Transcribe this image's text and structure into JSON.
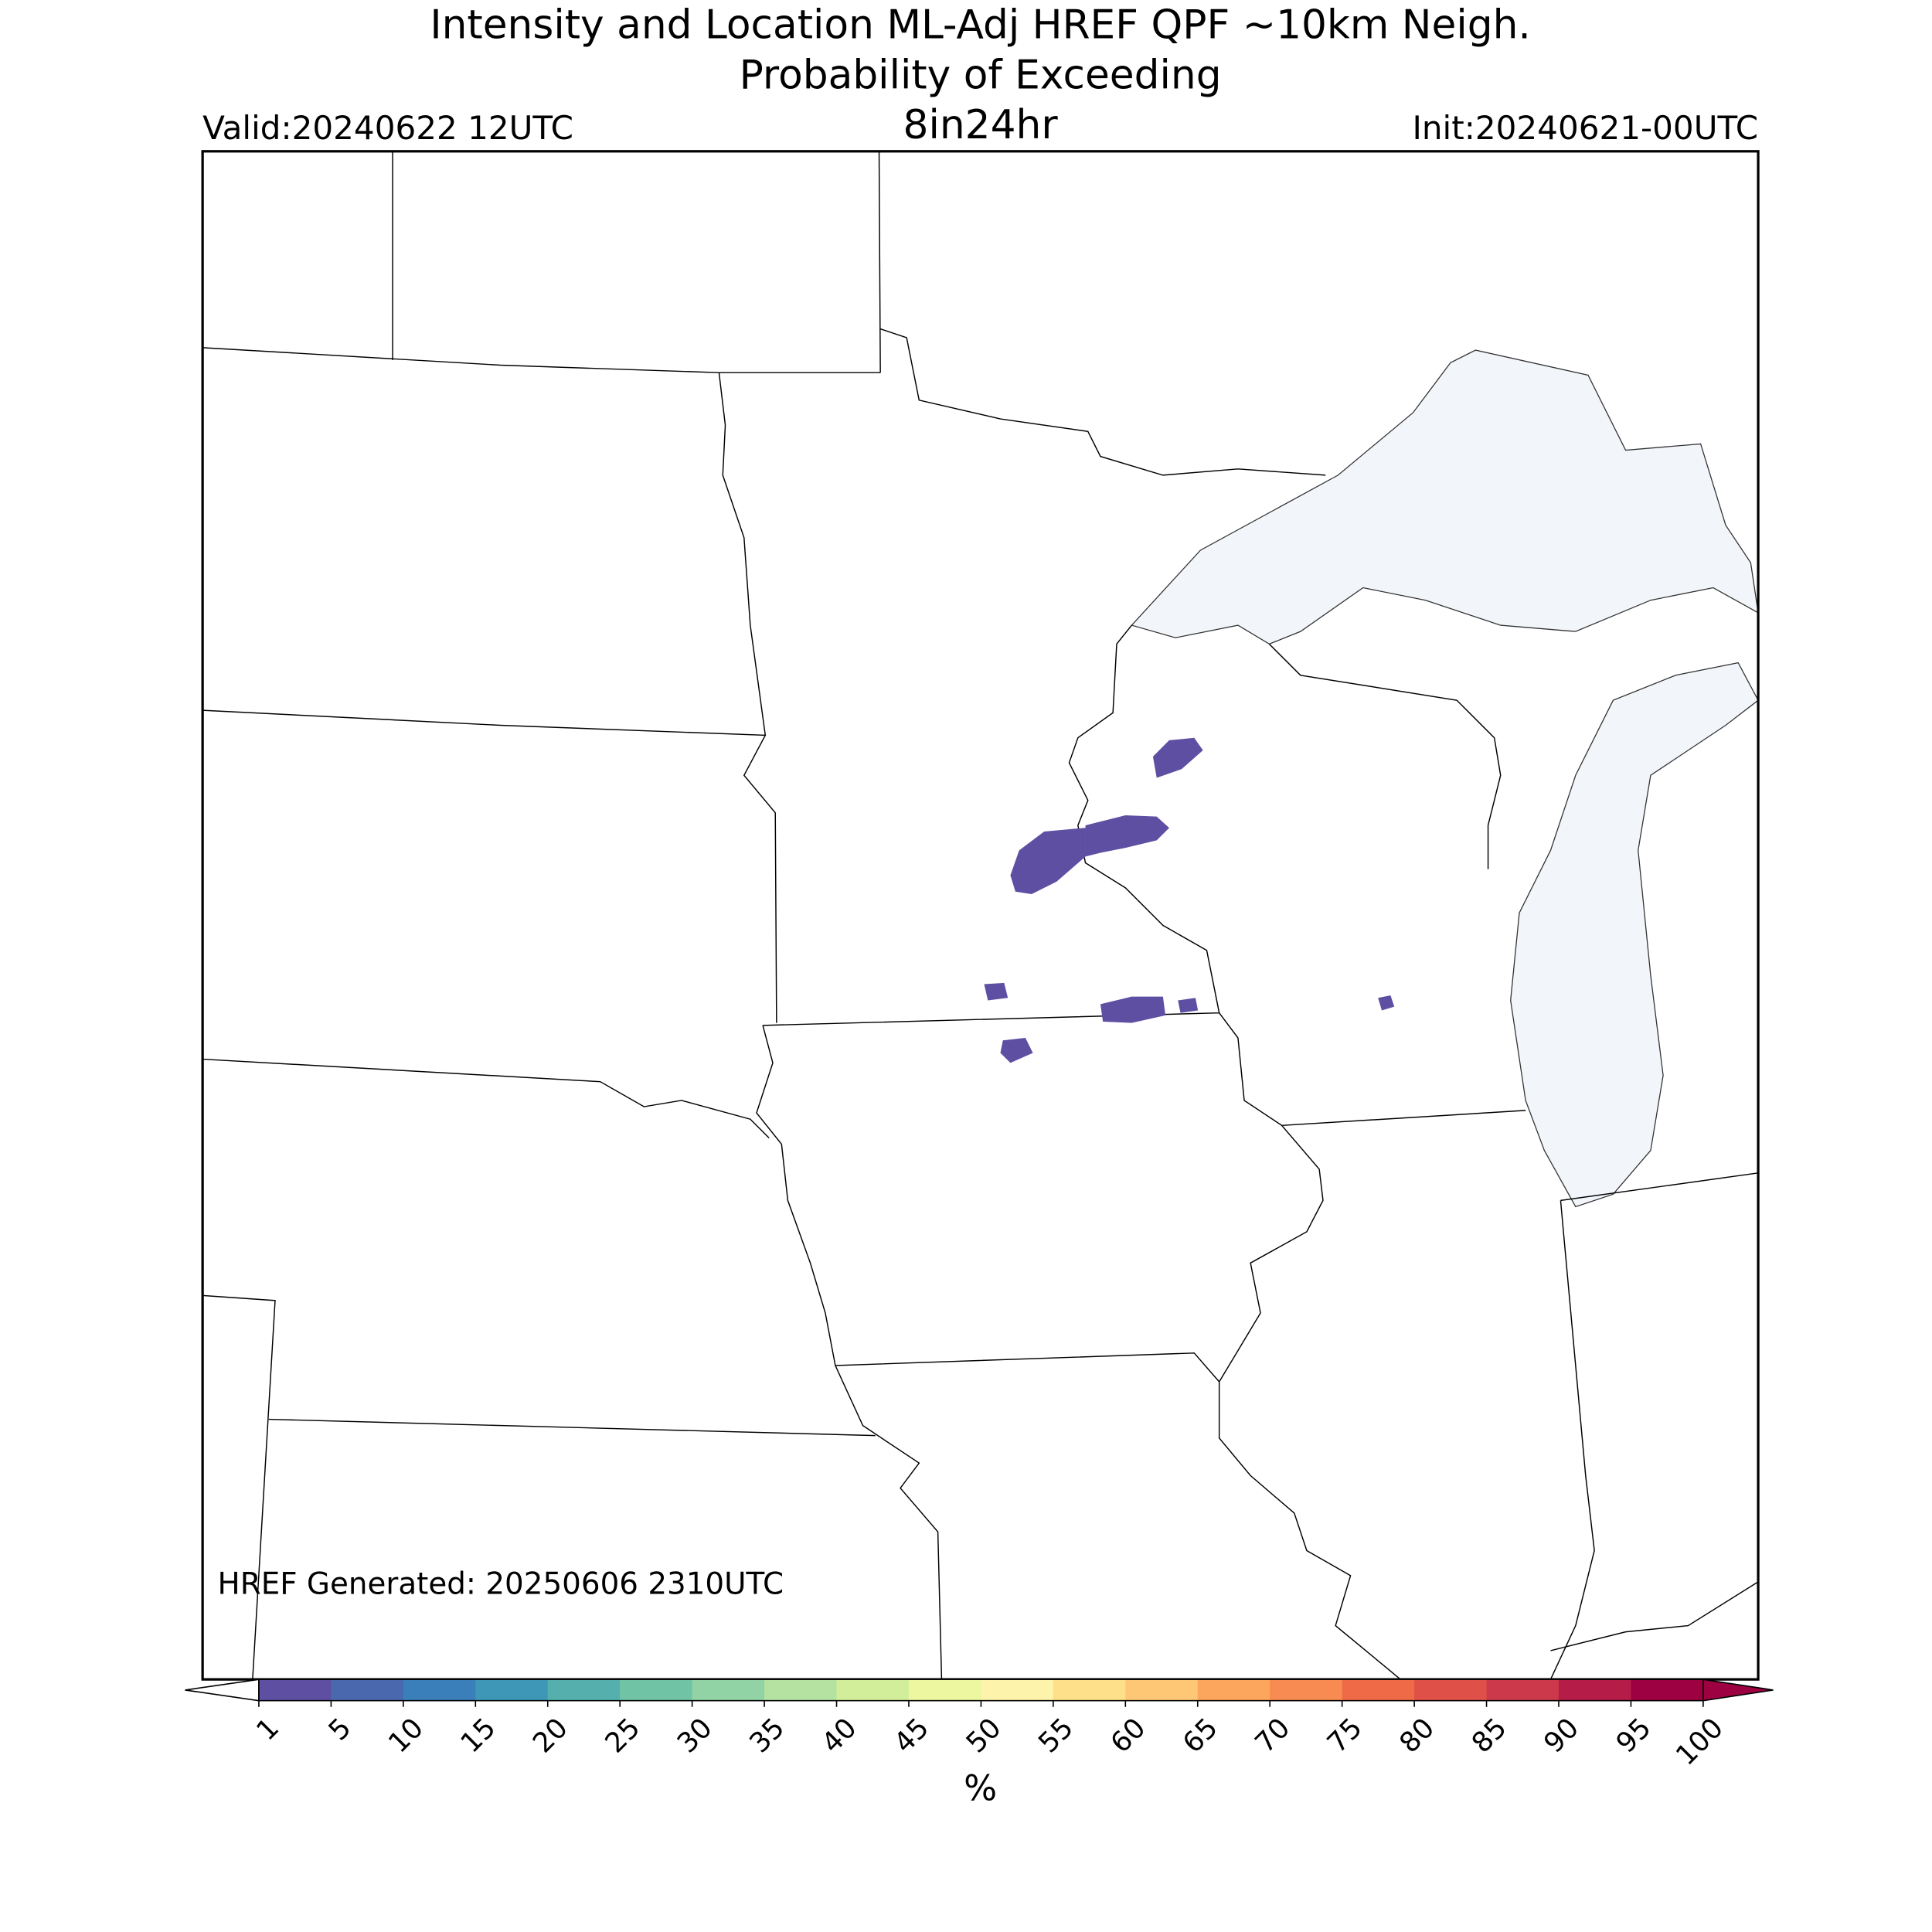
{
  "header": {
    "title_line1": "Intensity and Location ML-Adj HREF QPF ~10km Neigh.",
    "title_line2": "Probability of Exceeding",
    "threshold": "8in24hr",
    "valid": "Valid:20240622 12UTC",
    "init": "Init:20240621-00UTC"
  },
  "map": {
    "generated": "HREF Generated: 20250606 2310UTC"
  },
  "colorbar": {
    "label": "%",
    "ticks": [
      1,
      5,
      10,
      15,
      20,
      25,
      30,
      35,
      40,
      45,
      50,
      55,
      60,
      65,
      70,
      75,
      80,
      85,
      90,
      95,
      100
    ],
    "colors": [
      "#5e4fa2",
      "#4a68ae",
      "#3a7fb9",
      "#3f97b7",
      "#55b0ad",
      "#70c4a5",
      "#91d3a4",
      "#b5e2a1",
      "#d3ee9b",
      "#ecf7a0",
      "#fef3aa",
      "#fee08b",
      "#fdc776",
      "#fca55d",
      "#f88b51",
      "#ef6b48",
      "#df5048",
      "#cb394a",
      "#b51c48",
      "#9e0142"
    ],
    "under_color": "#ffffff",
    "over_color": "#9e0142"
  }
}
